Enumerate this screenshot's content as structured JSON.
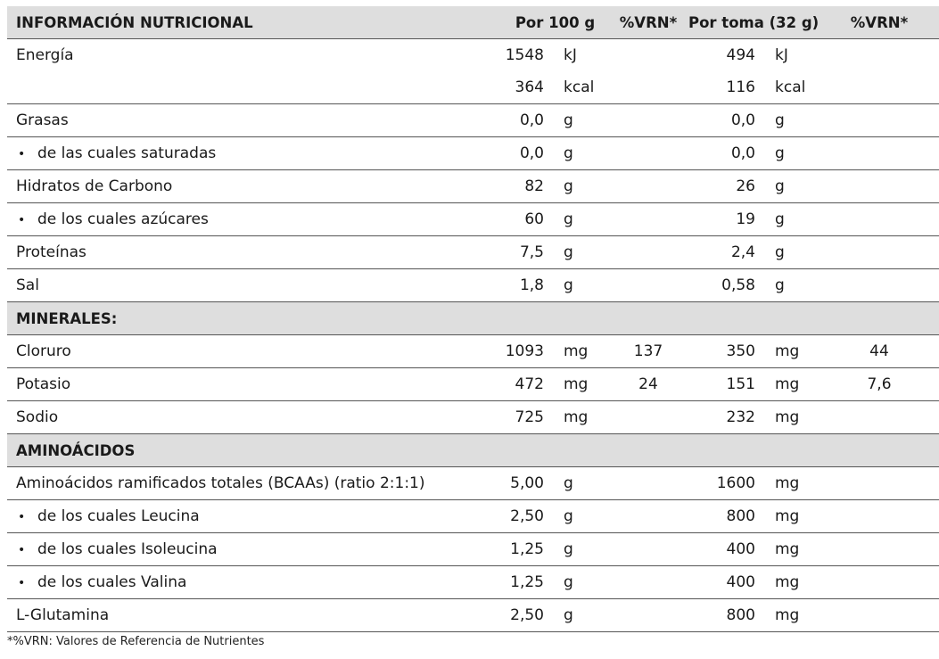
{
  "header": {
    "title": "INFORMACIÓN NUTRICIONAL",
    "per100": "Por 100 g",
    "vrn1": "%VRN*",
    "perserving": "Por toma (32 g)",
    "vrn2": "%VRN*"
  },
  "rows": [
    {
      "label": "Energía",
      "v1": "1548",
      "u1": "kJ",
      "r1": "",
      "v2": "494",
      "u2": "kJ",
      "r2": ""
    },
    {
      "label": "",
      "v1": "364",
      "u1": "kcal",
      "r1": "",
      "v2": "116",
      "u2": "kcal",
      "r2": ""
    },
    {
      "label": "Grasas",
      "v1": "0,0",
      "u1": "g",
      "r1": "",
      "v2": "0,0",
      "u2": "g",
      "r2": ""
    },
    {
      "label": "de las cuales saturadas",
      "v1": "0,0",
      "u1": "g",
      "r1": "",
      "v2": "0,0",
      "u2": "g",
      "r2": ""
    },
    {
      "label": "Hidratos de Carbono",
      "v1": "82",
      "u1": "g",
      "r1": "",
      "v2": "26",
      "u2": "g",
      "r2": ""
    },
    {
      "label": "de los cuales azúcares",
      "v1": "60",
      "u1": "g",
      "r1": "",
      "v2": "19",
      "u2": "g",
      "r2": ""
    },
    {
      "label": "Proteínas",
      "v1": "7,5",
      "u1": "g",
      "r1": "",
      "v2": "2,4",
      "u2": "g",
      "r2": ""
    },
    {
      "label": "Sal",
      "v1": "1,8",
      "u1": "g",
      "r1": "",
      "v2": "0,58",
      "u2": "g",
      "r2": ""
    },
    {
      "label": "MINERALES:"
    },
    {
      "label": "Cloruro",
      "v1": "1093",
      "u1": "mg",
      "r1": "137",
      "v2": "350",
      "u2": "mg",
      "r2": "44"
    },
    {
      "label": "Potasio",
      "v1": "472",
      "u1": "mg",
      "r1": "24",
      "v2": "151",
      "u2": "mg",
      "r2": "7,6"
    },
    {
      "label": "Sodio",
      "v1": "725",
      "u1": "mg",
      "r1": "",
      "v2": "232",
      "u2": "mg",
      "r2": ""
    },
    {
      "label": "AMINOÁCIDOS"
    },
    {
      "label": "Aminoácidos ramificados totales (BCAAs) (ratio 2:1:1)",
      "v1": "5,00",
      "u1": "g",
      "r1": "",
      "v2": "1600",
      "u2": "mg",
      "r2": ""
    },
    {
      "label": "de los cuales Leucina",
      "v1": "2,50",
      "u1": "g",
      "r1": "",
      "v2": "800",
      "u2": "mg",
      "r2": ""
    },
    {
      "label": "de los cuales Isoleucina",
      "v1": "1,25",
      "u1": "g",
      "r1": "",
      "v2": "400",
      "u2": "mg",
      "r2": ""
    },
    {
      "label": "de los cuales Valina",
      "v1": "1,25",
      "u1": "g",
      "r1": "",
      "v2": "400",
      "u2": "mg",
      "r2": ""
    },
    {
      "label": "L-Glutamina",
      "v1": "2,50",
      "u1": "g",
      "r1": "",
      "v2": "800",
      "u2": "mg",
      "r2": ""
    }
  ],
  "footnote": "*%VRN: Valores de Referencia de Nutrientes"
}
